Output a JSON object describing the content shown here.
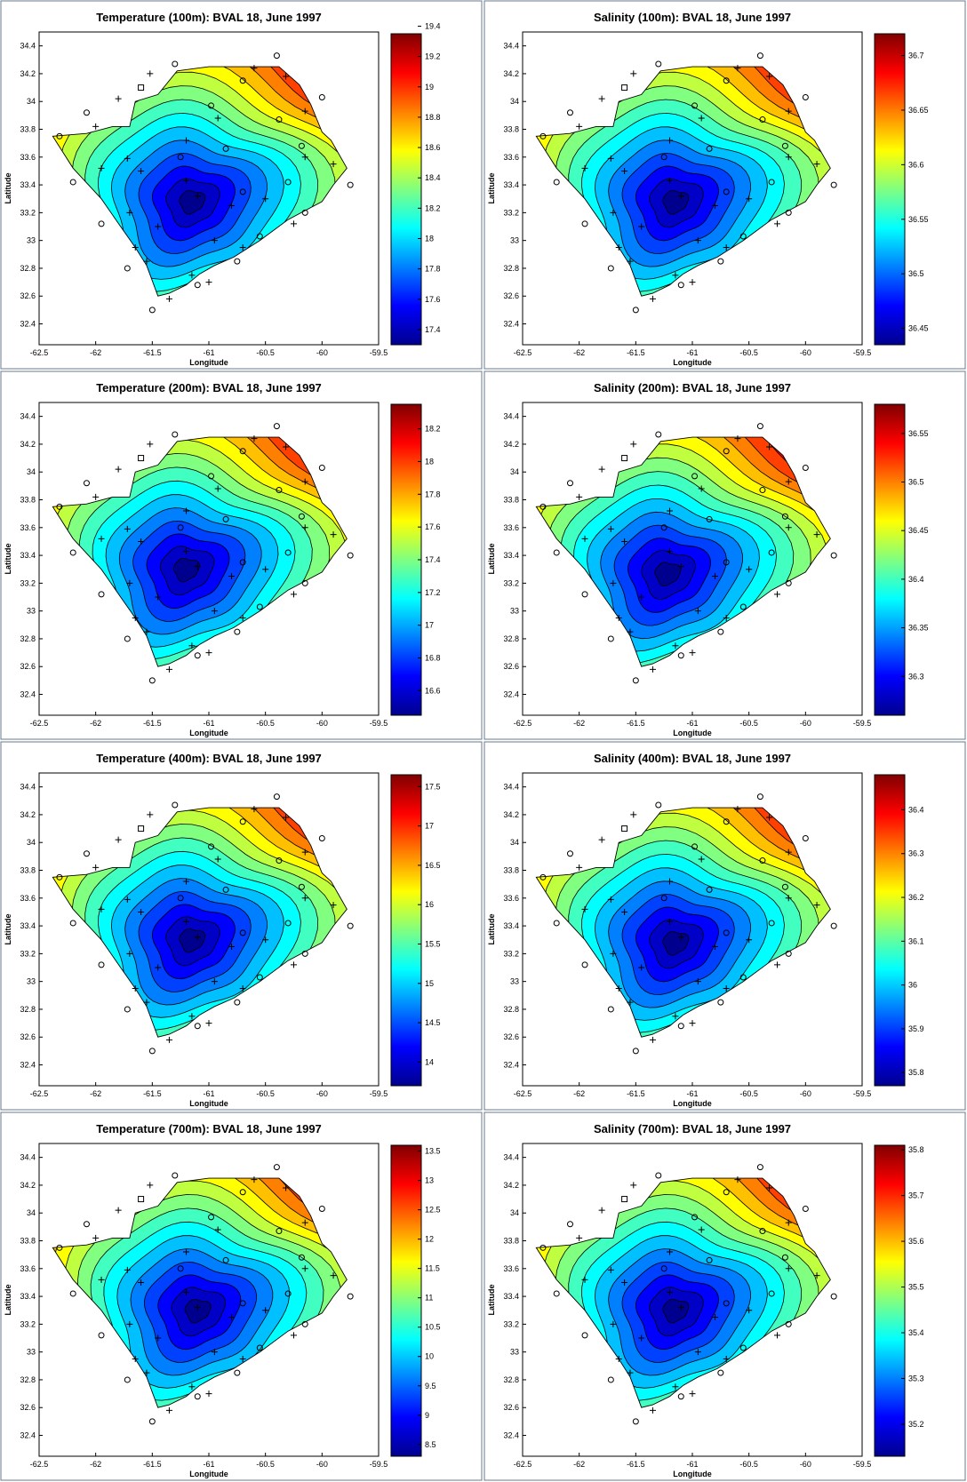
{
  "figure": {
    "x_axis_label": "Longitude",
    "y_axis_label": "Latitude",
    "x_ticks": [
      "-62.5",
      "-62",
      "-61.5",
      "-61",
      "-60.5",
      "-60",
      "-59.5"
    ],
    "y_ticks": [
      "32.4",
      "32.6",
      "32.8",
      "33",
      "33.2",
      "33.4",
      "33.6",
      "33.8",
      "34",
      "34.2",
      "34.4"
    ]
  },
  "colormap": [
    "#00008f",
    "#0000ff",
    "#0080ff",
    "#00ffff",
    "#80ff80",
    "#ffff00",
    "#ff8000",
    "#ff0000",
    "#800000"
  ],
  "chart_data": [
    {
      "type": "contour",
      "title": "Temperature (100m): BVAL 18, June 1997",
      "xlabel": "Longitude",
      "ylabel": "Latitude",
      "xlim": [
        -62.5,
        -59.5
      ],
      "ylim": [
        32.25,
        34.5
      ],
      "center": [
        -61.15,
        33.28
      ],
      "min_value": 17.3,
      "max_value": 19.35,
      "colorbar_ticks": [
        "17.4",
        "17.6",
        "17.8",
        "18",
        "18.2",
        "18.4",
        "18.6",
        "18.8",
        "19",
        "19.2",
        "19.4"
      ]
    },
    {
      "type": "contour",
      "title": "Salinity (100m): BVAL 18, June 1997",
      "xlabel": "Longitude",
      "ylabel": "Latitude",
      "xlim": [
        -62.5,
        -59.5
      ],
      "ylim": [
        32.25,
        34.5
      ],
      "center": [
        -61.15,
        33.28
      ],
      "min_value": 36.435,
      "max_value": 36.72,
      "colorbar_ticks": [
        "36.45",
        "36.5",
        "36.55",
        "36.6",
        "36.65",
        "36.7"
      ]
    },
    {
      "type": "contour",
      "title": "Temperature (200m): BVAL 18, June 1997",
      "xlabel": "Longitude",
      "ylabel": "Latitude",
      "xlim": [
        -62.5,
        -59.5
      ],
      "ylim": [
        32.25,
        34.5
      ],
      "center": [
        -61.2,
        33.3
      ],
      "min_value": 16.45,
      "max_value": 18.35,
      "colorbar_ticks": [
        "16.6",
        "16.8",
        "17",
        "17.2",
        "17.4",
        "17.6",
        "17.8",
        "18",
        "18.2"
      ]
    },
    {
      "type": "contour",
      "title": "Salinity (200m): BVAL 18, June 1997",
      "xlabel": "Longitude",
      "ylabel": "Latitude",
      "xlim": [
        -62.5,
        -59.5
      ],
      "ylim": [
        32.25,
        34.5
      ],
      "center": [
        -61.22,
        33.27
      ],
      "min_value": 36.26,
      "max_value": 36.58,
      "colorbar_ticks": [
        "36.3",
        "36.35",
        "36.4",
        "36.45",
        "36.5",
        "36.55"
      ]
    },
    {
      "type": "contour",
      "title": "Temperature (400m): BVAL 18, June 1997",
      "xlabel": "Longitude",
      "ylabel": "Latitude",
      "xlim": [
        -62.5,
        -59.5
      ],
      "ylim": [
        32.25,
        34.5
      ],
      "center": [
        -61.15,
        33.3
      ],
      "min_value": 13.7,
      "max_value": 17.65,
      "colorbar_ticks": [
        "14",
        "14.5",
        "15",
        "15.5",
        "16",
        "16.5",
        "17",
        "17.5"
      ]
    },
    {
      "type": "contour",
      "title": "Salinity (400m): BVAL 18, June 1997",
      "xlabel": "Longitude",
      "ylabel": "Latitude",
      "xlim": [
        -62.5,
        -59.5
      ],
      "ylim": [
        32.25,
        34.5
      ],
      "center": [
        -61.15,
        33.28
      ],
      "min_value": 35.77,
      "max_value": 36.48,
      "colorbar_ticks": [
        "35.8",
        "35.9",
        "36",
        "36.1",
        "36.2",
        "36.3",
        "36.4"
      ]
    },
    {
      "type": "contour",
      "title": "Temperature (700m): BVAL 18, June 1997",
      "xlabel": "Longitude",
      "ylabel": "Latitude",
      "xlim": [
        -62.5,
        -59.5
      ],
      "ylim": [
        32.25,
        34.5
      ],
      "center": [
        -61.1,
        33.3
      ],
      "min_value": 8.3,
      "max_value": 13.6,
      "colorbar_ticks": [
        "8.5",
        "9",
        "9.5",
        "10",
        "10.5",
        "11",
        "11.5",
        "12",
        "12.5",
        "13",
        "13.5"
      ]
    },
    {
      "type": "contour",
      "title": "Salinity (700m): BVAL 18, June 1997",
      "xlabel": "Longitude",
      "ylabel": "Latitude",
      "xlim": [
        -62.5,
        -59.5
      ],
      "ylim": [
        32.25,
        34.5
      ],
      "center": [
        -61.15,
        33.3
      ],
      "min_value": 35.13,
      "max_value": 35.81,
      "colorbar_ticks": [
        "35.2",
        "35.3",
        "35.4",
        "35.5",
        "35.6",
        "35.7",
        "35.8"
      ]
    }
  ],
  "stations": {
    "plus": [
      [
        -62.0,
        33.82
      ],
      [
        -61.8,
        34.02
      ],
      [
        -61.52,
        34.2
      ],
      [
        -61.2,
        33.72
      ],
      [
        -60.92,
        33.88
      ],
      [
        -60.6,
        34.24
      ],
      [
        -60.32,
        34.18
      ],
      [
        -60.15,
        33.93
      ],
      [
        -60.15,
        33.6
      ],
      [
        -59.9,
        33.55
      ],
      [
        -61.72,
        33.59
      ],
      [
        -61.95,
        33.52
      ],
      [
        -61.6,
        33.5
      ],
      [
        -61.2,
        33.43
      ],
      [
        -61.1,
        33.32
      ],
      [
        -60.8,
        33.25
      ],
      [
        -61.7,
        33.2
      ],
      [
        -61.45,
        33.1
      ],
      [
        -60.95,
        33.0
      ],
      [
        -60.7,
        32.95
      ],
      [
        -60.25,
        33.12
      ],
      [
        -61.65,
        32.95
      ],
      [
        -61.55,
        32.85
      ],
      [
        -61.15,
        32.75
      ],
      [
        -61.0,
        32.7
      ],
      [
        -61.35,
        32.58
      ],
      [
        -60.5,
        33.3
      ]
    ],
    "circle": [
      [
        -62.08,
        33.92
      ],
      [
        -62.32,
        33.75
      ],
      [
        -62.2,
        33.42
      ],
      [
        -61.95,
        33.12
      ],
      [
        -61.72,
        32.8
      ],
      [
        -61.5,
        32.5
      ],
      [
        -61.3,
        34.27
      ],
      [
        -60.98,
        33.97
      ],
      [
        -60.7,
        34.15
      ],
      [
        -60.4,
        34.33
      ],
      [
        -60.38,
        33.87
      ],
      [
        -60.0,
        34.03
      ],
      [
        -60.18,
        33.68
      ],
      [
        -59.75,
        33.4
      ],
      [
        -60.15,
        33.2
      ],
      [
        -60.55,
        33.03
      ],
      [
        -60.75,
        32.85
      ],
      [
        -61.1,
        32.68
      ],
      [
        -60.85,
        33.66
      ],
      [
        -60.7,
        33.35
      ],
      [
        -61.25,
        33.6
      ],
      [
        -60.3,
        33.42
      ]
    ],
    "square": [
      [
        -61.6,
        34.1
      ]
    ]
  }
}
